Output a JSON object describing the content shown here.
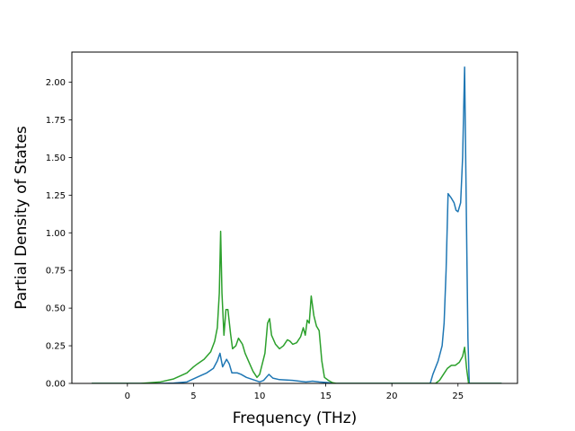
{
  "chart_data": {
    "type": "line",
    "xlabel": "Frequency (THz)",
    "ylabel": "Partial Density of States",
    "xlim": [
      -4.2,
      29.5
    ],
    "ylim": [
      0,
      2.2
    ],
    "xticks": [
      0,
      5,
      10,
      15,
      20,
      25
    ],
    "yticks": [
      0.0,
      0.25,
      0.5,
      0.75,
      1.0,
      1.25,
      1.5,
      1.75,
      2.0
    ],
    "xtick_labels": [
      "0",
      "5",
      "10",
      "15",
      "20",
      "25"
    ],
    "ytick_labels": [
      "0.00",
      "0.25",
      "0.50",
      "0.75",
      "1.00",
      "1.25",
      "1.50",
      "1.75",
      "2.00"
    ],
    "grid": false,
    "legend": "none",
    "series": [
      {
        "color": "#1f77b4",
        "points": [
          [
            -2.7,
            0
          ],
          [
            2.5,
            0
          ],
          [
            3.5,
            0.002
          ],
          [
            4.5,
            0.01
          ],
          [
            5.0,
            0.03
          ],
          [
            5.5,
            0.05
          ],
          [
            6.0,
            0.07
          ],
          [
            6.5,
            0.1
          ],
          [
            6.8,
            0.15
          ],
          [
            7.0,
            0.2
          ],
          [
            7.2,
            0.11
          ],
          [
            7.5,
            0.16
          ],
          [
            7.7,
            0.13
          ],
          [
            7.9,
            0.07
          ],
          [
            8.3,
            0.07
          ],
          [
            8.6,
            0.06
          ],
          [
            9.0,
            0.04
          ],
          [
            9.5,
            0.025
          ],
          [
            10.0,
            0.01
          ],
          [
            10.3,
            0.02
          ],
          [
            10.5,
            0.04
          ],
          [
            10.7,
            0.06
          ],
          [
            11.0,
            0.035
          ],
          [
            11.5,
            0.025
          ],
          [
            12.5,
            0.02
          ],
          [
            13.5,
            0.01
          ],
          [
            14.0,
            0.015
          ],
          [
            14.5,
            0.01
          ],
          [
            15.2,
            0.005
          ],
          [
            15.6,
            0
          ],
          [
            22.9,
            0
          ],
          [
            23.1,
            0.06
          ],
          [
            23.5,
            0.15
          ],
          [
            23.8,
            0.25
          ],
          [
            23.95,
            0.4
          ],
          [
            24.1,
            0.75
          ],
          [
            24.25,
            1.26
          ],
          [
            24.5,
            1.23
          ],
          [
            24.7,
            1.2
          ],
          [
            24.85,
            1.15
          ],
          [
            25.0,
            1.14
          ],
          [
            25.2,
            1.2
          ],
          [
            25.35,
            1.5
          ],
          [
            25.5,
            2.1
          ],
          [
            25.65,
            1.0
          ],
          [
            25.75,
            0.3
          ],
          [
            25.85,
            0
          ],
          [
            28.3,
            0
          ]
        ]
      },
      {
        "color": "#2ca02c",
        "points": [
          [
            -2.7,
            0
          ],
          [
            1.0,
            0
          ],
          [
            2.5,
            0.01
          ],
          [
            3.5,
            0.03
          ],
          [
            4.5,
            0.07
          ],
          [
            5.0,
            0.11
          ],
          [
            5.3,
            0.13
          ],
          [
            5.8,
            0.16
          ],
          [
            6.3,
            0.21
          ],
          [
            6.6,
            0.28
          ],
          [
            6.8,
            0.37
          ],
          [
            6.95,
            0.6
          ],
          [
            7.05,
            1.01
          ],
          [
            7.15,
            0.6
          ],
          [
            7.3,
            0.32
          ],
          [
            7.45,
            0.49
          ],
          [
            7.6,
            0.49
          ],
          [
            7.8,
            0.33
          ],
          [
            7.95,
            0.23
          ],
          [
            8.2,
            0.25
          ],
          [
            8.4,
            0.3
          ],
          [
            8.7,
            0.26
          ],
          [
            8.9,
            0.2
          ],
          [
            9.2,
            0.14
          ],
          [
            9.5,
            0.08
          ],
          [
            9.8,
            0.04
          ],
          [
            10.0,
            0.06
          ],
          [
            10.2,
            0.13
          ],
          [
            10.4,
            0.2
          ],
          [
            10.6,
            0.4
          ],
          [
            10.75,
            0.43
          ],
          [
            10.9,
            0.32
          ],
          [
            11.2,
            0.26
          ],
          [
            11.5,
            0.23
          ],
          [
            11.8,
            0.25
          ],
          [
            12.1,
            0.29
          ],
          [
            12.3,
            0.28
          ],
          [
            12.5,
            0.26
          ],
          [
            12.8,
            0.27
          ],
          [
            13.1,
            0.31
          ],
          [
            13.3,
            0.37
          ],
          [
            13.45,
            0.32
          ],
          [
            13.6,
            0.42
          ],
          [
            13.75,
            0.4
          ],
          [
            13.9,
            0.58
          ],
          [
            14.1,
            0.45
          ],
          [
            14.3,
            0.38
          ],
          [
            14.5,
            0.35
          ],
          [
            14.7,
            0.15
          ],
          [
            14.9,
            0.04
          ],
          [
            15.2,
            0.02
          ],
          [
            15.5,
            0.005
          ],
          [
            15.8,
            0
          ],
          [
            23.3,
            0
          ],
          [
            23.6,
            0.02
          ],
          [
            23.9,
            0.06
          ],
          [
            24.2,
            0.1
          ],
          [
            24.5,
            0.12
          ],
          [
            24.8,
            0.12
          ],
          [
            25.1,
            0.14
          ],
          [
            25.35,
            0.18
          ],
          [
            25.5,
            0.24
          ],
          [
            25.65,
            0.1
          ],
          [
            25.8,
            0
          ],
          [
            28.3,
            0
          ]
        ]
      }
    ]
  }
}
